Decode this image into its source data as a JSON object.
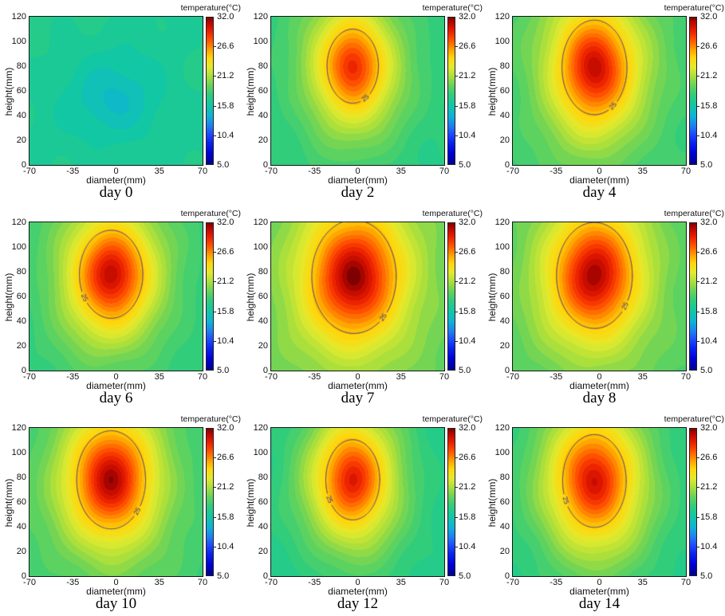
{
  "figure": {
    "background": "#ffffff",
    "text_color": "#111111",
    "contour_color": "#2e3192"
  },
  "chart_data": {
    "type": "heatmap",
    "layout": "3x3 grid of filled contour plots",
    "xlabel": "diameter(mm)",
    "ylabel": "height(mm)",
    "xlim": [
      -70,
      70
    ],
    "ylim": [
      0,
      120
    ],
    "xticks": [
      -70,
      -35,
      0,
      35,
      70
    ],
    "xtick_labels": [
      "-70",
      "-35",
      "0",
      "35",
      "70"
    ],
    "yticks": [
      0,
      20,
      40,
      60,
      80,
      100,
      120
    ],
    "ytick_labels": [
      "0",
      "20",
      "40",
      "60",
      "80",
      "100",
      "120"
    ],
    "temperature_scale": {
      "label": "temperature(°C)",
      "min": 5.0,
      "max": 32.0,
      "tick_values": [
        32.0,
        26.6,
        21.2,
        15.8,
        10.4,
        5.0
      ],
      "tick_labels": [
        "32.0",
        "26.6",
        "21.2",
        "15.8",
        "10.4",
        "5.0"
      ]
    },
    "colormap": [
      {
        "t": 5.0,
        "color": "#00008f"
      },
      {
        "t": 7.0,
        "color": "#0000d8"
      },
      {
        "t": 9.0,
        "color": "#0a24f0"
      },
      {
        "t": 10.4,
        "color": "#1e46ff"
      },
      {
        "t": 12.0,
        "color": "#1f7df2"
      },
      {
        "t": 13.8,
        "color": "#0fb2d8"
      },
      {
        "t": 15.8,
        "color": "#12c7a4"
      },
      {
        "t": 16.8,
        "color": "#1fca90"
      },
      {
        "t": 17.9,
        "color": "#33cd7a"
      },
      {
        "t": 19.5,
        "color": "#66d35a"
      },
      {
        "t": 21.2,
        "color": "#abdf3c"
      },
      {
        "t": 22.9,
        "color": "#e3ea2e"
      },
      {
        "t": 24.6,
        "color": "#ffd60a"
      },
      {
        "t": 26.0,
        "color": "#ffa400"
      },
      {
        "t": 26.6,
        "color": "#ff8800"
      },
      {
        "t": 28.0,
        "color": "#ff4d00"
      },
      {
        "t": 29.5,
        "color": "#ea1e00"
      },
      {
        "t": 31.0,
        "color": "#bc0600"
      },
      {
        "t": 32.0,
        "color": "#7e0000"
      }
    ],
    "contour_level": 25,
    "contour_label": "25",
    "subplots": [
      {
        "label": "day 0",
        "peak_temp": 14.6,
        "background_temp": 16.9,
        "hot_center": [
          0,
          52
        ],
        "sigma": [
          26,
          24
        ],
        "contour": false,
        "label_angle": 0
      },
      {
        "label": "day 2",
        "peak_temp": 29.6,
        "background_temp": 17.4,
        "hot_center": [
          -4,
          80
        ],
        "sigma": [
          21.5,
          31
        ],
        "contour": true,
        "label_angle": -1.05
      },
      {
        "label": "day 4",
        "peak_temp": 31.0,
        "background_temp": 18.0,
        "hot_center": [
          -4,
          79
        ],
        "sigma": [
          23,
          33.5
        ],
        "contour": true,
        "label_angle": -0.96
      },
      {
        "label": "day 6",
        "peak_temp": 31.0,
        "background_temp": 17.6,
        "hot_center": [
          -4,
          78
        ],
        "sigma": [
          23,
          32
        ],
        "contour": true,
        "label_angle": -2.58
      },
      {
        "label": "day 7",
        "peak_temp": 32.0,
        "background_temp": 19.0,
        "hot_center": [
          -3,
          76
        ],
        "sigma": [
          26,
          35
        ],
        "contour": true,
        "label_angle": -0.8
      },
      {
        "label": "day 8",
        "peak_temp": 31.5,
        "background_temp": 18.5,
        "hot_center": [
          -4,
          77
        ],
        "sigma": [
          25,
          35
        ],
        "contour": true,
        "label_angle": -0.62
      },
      {
        "label": "day 10",
        "peak_temp": 31.5,
        "background_temp": 18.0,
        "hot_center": [
          -4,
          78
        ],
        "sigma": [
          23.5,
          33.5
        ],
        "contour": true,
        "label_angle": -0.7
      },
      {
        "label": "day 12",
        "peak_temp": 30.0,
        "background_temp": 16.8,
        "hot_center": [
          -4,
          78
        ],
        "sigma": [
          22.5,
          33.5
        ],
        "contour": true,
        "label_angle": -2.63
      },
      {
        "label": "day 14",
        "peak_temp": 30.5,
        "background_temp": 17.0,
        "hot_center": [
          -4,
          77
        ],
        "sigma": [
          25,
          36.5
        ],
        "contour": true,
        "label_angle": -2.71
      }
    ]
  }
}
